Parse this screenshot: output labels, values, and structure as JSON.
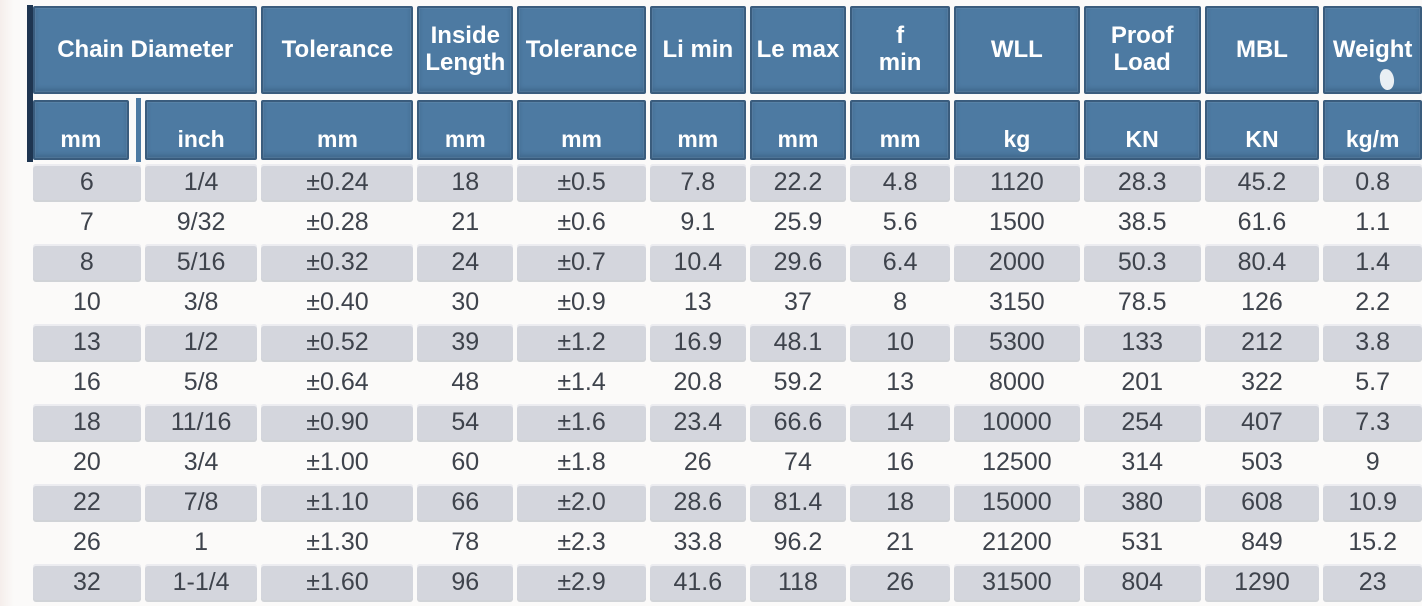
{
  "table": {
    "header": {
      "groups": [
        {
          "label": "Chain Diameter",
          "span": 2
        },
        {
          "label": "Tolerance",
          "span": 1
        },
        {
          "label": "Inside\nLength",
          "span": 1
        },
        {
          "label": "Tolerance",
          "span": 1
        },
        {
          "label": "Li min",
          "span": 1
        },
        {
          "label": "Le max",
          "span": 1
        },
        {
          "label": "f\nmin",
          "span": 1
        },
        {
          "label": "WLL",
          "span": 1
        },
        {
          "label": "Proof\nLoad",
          "span": 1
        },
        {
          "label": "MBL",
          "span": 1
        },
        {
          "label": "Weight",
          "span": 1
        }
      ],
      "units": [
        "mm",
        "inch",
        "mm",
        "mm",
        "mm",
        "mm",
        "mm",
        "mm",
        "kg",
        "KN",
        "KN",
        "kg/m"
      ]
    },
    "rows": [
      [
        "6",
        "1/4",
        "±0.24",
        "18",
        "±0.5",
        "7.8",
        "22.2",
        "4.8",
        "1120",
        "28.3",
        "45.2",
        "0.8"
      ],
      [
        "7",
        "9/32",
        "±0.28",
        "21",
        "±0.6",
        "9.1",
        "25.9",
        "5.6",
        "1500",
        "38.5",
        "61.6",
        "1.1"
      ],
      [
        "8",
        "5/16",
        "±0.32",
        "24",
        "±0.7",
        "10.4",
        "29.6",
        "6.4",
        "2000",
        "50.3",
        "80.4",
        "1.4"
      ],
      [
        "10",
        "3/8",
        "±0.40",
        "30",
        "±0.9",
        "13",
        "37",
        "8",
        "3150",
        "78.5",
        "126",
        "2.2"
      ],
      [
        "13",
        "1/2",
        "±0.52",
        "39",
        "±1.2",
        "16.9",
        "48.1",
        "10",
        "5300",
        "133",
        "212",
        "3.8"
      ],
      [
        "16",
        "5/8",
        "±0.64",
        "48",
        "±1.4",
        "20.8",
        "59.2",
        "13",
        "8000",
        "201",
        "322",
        "5.7"
      ],
      [
        "18",
        "11/16",
        "±0.90",
        "54",
        "±1.6",
        "23.4",
        "66.6",
        "14",
        "10000",
        "254",
        "407",
        "7.3"
      ],
      [
        "20",
        "3/4",
        "±1.00",
        "60",
        "±1.8",
        "26",
        "74",
        "16",
        "12500",
        "314",
        "503",
        "9"
      ],
      [
        "22",
        "7/8",
        "±1.10",
        "66",
        "±2.0",
        "28.6",
        "81.4",
        "18",
        "15000",
        "380",
        "608",
        "10.9"
      ],
      [
        "26",
        "1",
        "±1.30",
        "78",
        "±2.3",
        "33.8",
        "96.2",
        "21",
        "21200",
        "531",
        "849",
        "15.2"
      ],
      [
        "32",
        "1-1/4",
        "±1.60",
        "96",
        "±2.9",
        "41.6",
        "118",
        "26",
        "31500",
        "804",
        "1290",
        "23"
      ]
    ],
    "colors": {
      "header_blue": "#4d7aa2",
      "header_border": "#3a5c7d",
      "dark_edge": "#1e3551",
      "row_gray": "#d4d6dd",
      "row_white": "#ffffff",
      "text_dark": "#3e434c"
    }
  }
}
